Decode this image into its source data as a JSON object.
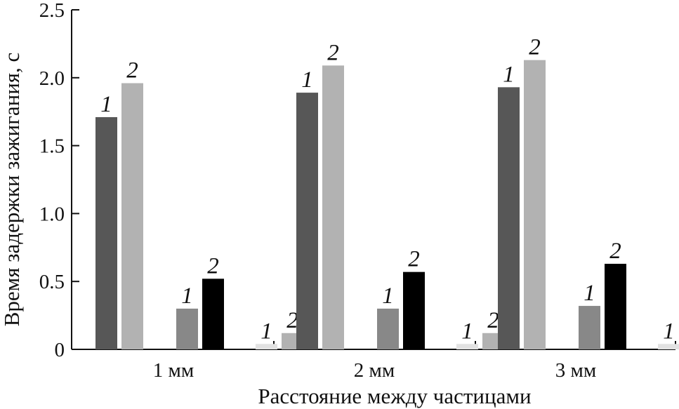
{
  "chart_data": {
    "type": "bar",
    "categories": [
      "1 мм",
      "2 мм",
      "3 мм"
    ],
    "bar_groups": [
      {
        "label_values": [
          "1",
          "2"
        ],
        "colors": [
          "#575757",
          "#b2b2b2"
        ],
        "values": [
          [
            1.71,
            1.96
          ],
          [
            1.89,
            2.09
          ],
          [
            1.93,
            2.13
          ]
        ]
      },
      {
        "label_values": [
          "1",
          "2"
        ],
        "colors": [
          "#888888",
          "#000000"
        ],
        "values": [
          [
            0.3,
            0.52
          ],
          [
            0.3,
            0.57
          ],
          [
            0.32,
            0.63
          ]
        ]
      },
      {
        "label_values": [
          "1",
          "2"
        ],
        "colors": [
          "#e2e2e2",
          "#b2b2b2"
        ],
        "values": [
          [
            0.04,
            0.12
          ],
          [
            0.04,
            0.12
          ],
          [
            0.04,
            0.12
          ]
        ]
      }
    ],
    "ylim": [
      0,
      2.5
    ],
    "yticks": [
      "0",
      "0.5",
      "1.0",
      "1.5",
      "2.0",
      "2.5"
    ],
    "xlabel": "Расстояние между частицами",
    "ylabel": "Время задержки зажигания, с",
    "grid": false,
    "legend": "none"
  }
}
